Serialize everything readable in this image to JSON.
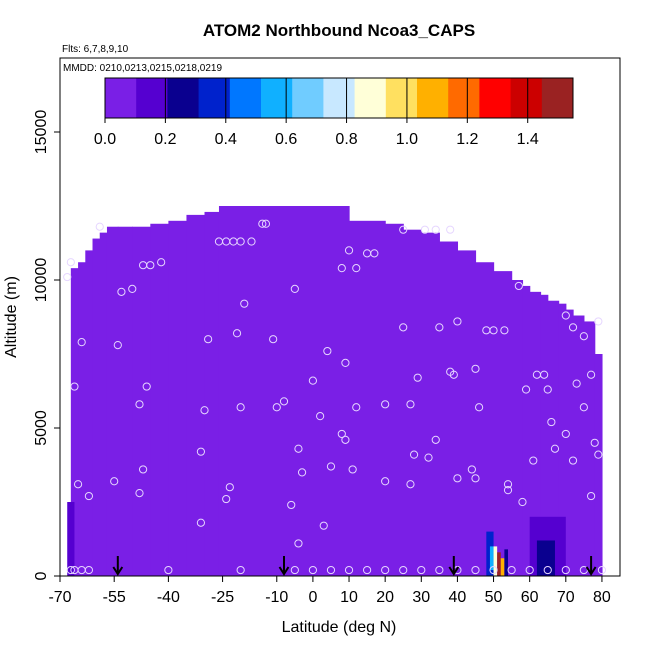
{
  "chart_data": {
    "type": "heatmap",
    "title": "ATOM2 Northbound Ncoa3_CAPS",
    "flights_label": "Flts: 6,7,8,9,10",
    "dates_label": "MMDD: 0210,0213,0215,0218,0219",
    "xlabel": "Latitude (deg N)",
    "ylabel": "Altitude (m)",
    "xlim": [
      -70,
      85
    ],
    "ylim": [
      0,
      17500
    ],
    "x_ticks": [
      -70,
      -55,
      -40,
      -25,
      -10,
      0,
      10,
      20,
      30,
      40,
      50,
      60,
      70,
      80
    ],
    "y_ticks": [
      0,
      5000,
      10000,
      15000
    ],
    "colorbar": {
      "range": [
        0.0,
        1.55
      ],
      "ticks": [
        0.0,
        0.2,
        0.4,
        0.6,
        0.8,
        1.0,
        1.2,
        1.4
      ],
      "colors": [
        "#7a1fe6",
        "#5500d0",
        "#0a008f",
        "#0022cc",
        "#0077ff",
        "#10b0ff",
        "#70ccff",
        "#c8e8ff",
        "#ffffd8",
        "#ffe060",
        "#ffb000",
        "#ff6a00",
        "#ff0000",
        "#cc0000",
        "#9a2222"
      ]
    },
    "background_value": 0.02,
    "envelope": {
      "lat": [
        -67,
        -65,
        -63,
        -61,
        -59,
        -57,
        -54,
        -50,
        -45,
        -40,
        -35,
        -30,
        -26,
        10,
        20,
        25,
        30,
        35,
        40,
        45,
        50,
        55,
        58,
        60,
        63,
        65,
        68,
        70,
        72,
        75,
        78,
        80
      ],
      "top_altitude": [
        10400,
        10600,
        11000,
        11400,
        11600,
        11800,
        11800,
        11800,
        11900,
        12000,
        12200,
        12300,
        12500,
        12000,
        11900,
        11700,
        11600,
        11300,
        11000,
        10600,
        10300,
        10000,
        9800,
        9600,
        9500,
        9300,
        9200,
        9000,
        8800,
        8600,
        7500,
        5000
      ]
    },
    "hotspots": [
      {
        "lat": [
          48,
          50
        ],
        "alt": [
          0,
          1500
        ],
        "value": 0.35
      },
      {
        "lat": [
          49,
          50
        ],
        "alt": [
          200,
          1000
        ],
        "value": 0.55
      },
      {
        "lat": [
          50,
          51
        ],
        "alt": [
          0,
          1000
        ],
        "value": 0.85
      },
      {
        "lat": [
          51,
          52
        ],
        "alt": [
          0,
          800
        ],
        "value": 1.45
      },
      {
        "lat": [
          52,
          53
        ],
        "alt": [
          0,
          600
        ],
        "value": 1.1
      },
      {
        "lat": [
          53,
          54
        ],
        "alt": [
          0,
          900
        ],
        "value": 0.3
      },
      {
        "lat": [
          60,
          70
        ],
        "alt": [
          0,
          2000
        ],
        "value": 0.18
      },
      {
        "lat": [
          62,
          67
        ],
        "alt": [
          0,
          1200
        ],
        "value": 0.3
      },
      {
        "lat": [
          -68,
          -66
        ],
        "alt": [
          0,
          2500
        ],
        "value": 0.15
      }
    ],
    "sample_points": [
      [
        -68,
        10100
      ],
      [
        -67,
        10600
      ],
      [
        -66,
        6400
      ],
      [
        -65,
        3100
      ],
      [
        -62,
        2700
      ],
      [
        -64,
        7900
      ],
      [
        -59,
        11800
      ],
      [
        -54,
        7800
      ],
      [
        -53,
        9600
      ],
      [
        -50,
        9700
      ],
      [
        -47,
        10500
      ],
      [
        -45,
        10500
      ],
      [
        -42,
        10600
      ],
      [
        -48,
        5800
      ],
      [
        -46,
        6400
      ],
      [
        -47,
        3600
      ],
      [
        -48,
        2800
      ],
      [
        -55,
        3200
      ],
      [
        -26,
        11300
      ],
      [
        -24,
        11300
      ],
      [
        -22,
        11300
      ],
      [
        -20,
        11300
      ],
      [
        -17,
        11300
      ],
      [
        -14,
        11900
      ],
      [
        -13,
        11900
      ],
      [
        -19,
        9200
      ],
      [
        -21,
        8200
      ],
      [
        -29,
        8000
      ],
      [
        -30,
        5600
      ],
      [
        -20,
        5700
      ],
      [
        -31,
        4200
      ],
      [
        -23,
        3000
      ],
      [
        -24,
        2600
      ],
      [
        -31,
        1800
      ],
      [
        -11,
        8000
      ],
      [
        -10,
        5700
      ],
      [
        -8,
        5900
      ],
      [
        -5,
        9700
      ],
      [
        -4,
        4300
      ],
      [
        -3,
        3500
      ],
      [
        -6,
        2400
      ],
      [
        -4,
        1100
      ],
      [
        0,
        6600
      ],
      [
        2,
        5400
      ],
      [
        4,
        7600
      ],
      [
        5,
        3700
      ],
      [
        3,
        1700
      ],
      [
        8,
        4800
      ],
      [
        9,
        4600
      ],
      [
        11,
        3600
      ],
      [
        12,
        5700
      ],
      [
        8,
        10400
      ],
      [
        10,
        11000
      ],
      [
        12,
        10400
      ],
      [
        15,
        10900
      ],
      [
        17,
        10900
      ],
      [
        9,
        7200
      ],
      [
        20,
        5800
      ],
      [
        20,
        3200
      ],
      [
        25,
        11700
      ],
      [
        25,
        8400
      ],
      [
        27,
        5800
      ],
      [
        27,
        3100
      ],
      [
        28,
        4100
      ],
      [
        29,
        6700
      ],
      [
        31,
        11700
      ],
      [
        34,
        11700
      ],
      [
        34,
        4600
      ],
      [
        32,
        4000
      ],
      [
        35,
        8400
      ],
      [
        38,
        11700
      ],
      [
        40,
        8600
      ],
      [
        40,
        3300
      ],
      [
        38,
        6900
      ],
      [
        39,
        6800
      ],
      [
        45,
        7000
      ],
      [
        45,
        3300
      ],
      [
        44,
        3600
      ],
      [
        46,
        5700
      ],
      [
        48,
        8300
      ],
      [
        50,
        8300
      ],
      [
        53,
        8300
      ],
      [
        54,
        3100
      ],
      [
        58,
        2500
      ],
      [
        59,
        6300
      ],
      [
        62,
        6800
      ],
      [
        64,
        6800
      ],
      [
        65,
        6300
      ],
      [
        66,
        5200
      ],
      [
        67,
        4300
      ],
      [
        70,
        4800
      ],
      [
        72,
        3900
      ],
      [
        73,
        6500
      ],
      [
        75,
        5700
      ],
      [
        77,
        6800
      ],
      [
        78,
        4500
      ],
      [
        79,
        4100
      ],
      [
        77,
        2700
      ],
      [
        70,
        8800
      ],
      [
        72,
        8400
      ],
      [
        75,
        8100
      ],
      [
        79,
        8600
      ],
      [
        57,
        9800
      ],
      [
        61,
        3900
      ],
      [
        54,
        2900
      ],
      [
        -67,
        200
      ],
      [
        -66,
        200
      ],
      [
        -64,
        200
      ],
      [
        -62,
        200
      ],
      [
        -40,
        200
      ],
      [
        -20,
        200
      ],
      [
        -5,
        200
      ],
      [
        0,
        200
      ],
      [
        5,
        200
      ],
      [
        10,
        200
      ],
      [
        15,
        200
      ],
      [
        20,
        200
      ],
      [
        25,
        200
      ],
      [
        30,
        200
      ],
      [
        35,
        200
      ],
      [
        40,
        200
      ],
      [
        45,
        200
      ],
      [
        50,
        200
      ],
      [
        55,
        200
      ],
      [
        60,
        200
      ],
      [
        65,
        200
      ],
      [
        70,
        200
      ],
      [
        75,
        200
      ],
      [
        80,
        200
      ]
    ],
    "arrows_lat": [
      -54,
      -8,
      39,
      77
    ]
  }
}
